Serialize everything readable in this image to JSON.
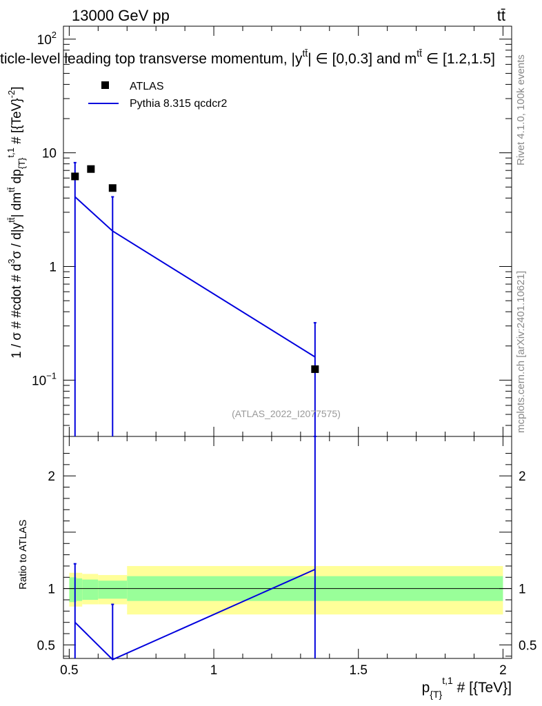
{
  "header": {
    "left": "13000 GeV pp",
    "right": "tt̄",
    "title": "ticle-level leading top transverse momentum, |y",
    "title_sup": "tt̄",
    "title_mid": "| ∈ [0,0.3] and m",
    "title_sup2": "tt̄",
    "title_end": " ∈ [1.2,1.5]"
  },
  "side_labels": {
    "rivet": "Rivet 4.1.0,  100k events",
    "mcplots": "mcplots.cern.ch [arXiv:2401.10621]"
  },
  "watermark": "(ATLAS_2022_I2077575)",
  "legend": {
    "data_label": "ATLAS",
    "mc_label": "Pythia 8.315 qcdcr2"
  },
  "axes": {
    "top_ylabel": "1 / σ # #cdot # d³σ / d|y^{tt̄}| dm^{tt̄} dp_{T}^{t,1} # [{TeV}⁻²]",
    "top_ylabel_parts": [
      "1 / σ # #cdot # d",
      "3",
      "σ / d|y",
      "tt̄",
      "| dm",
      "tt̄",
      " dp",
      "{T}",
      "t,1",
      " # [{TeV}",
      "-2",
      "]"
    ],
    "bottom_ylabel": "Ratio to ATLAS",
    "xlabel_main": "p",
    "xlabel_sub": "{T}",
    "xlabel_sup": "t,1",
    "xlabel_end": " # [{TeV}]",
    "x_ticks": [
      "0.5",
      "1",
      "1.5",
      "2"
    ],
    "top_y_ticks": [
      "10",
      "2",
      "10",
      "1",
      "10",
      "-1"
    ],
    "top_y_tick_labels": [
      {
        "base": "10",
        "exp": "2"
      },
      {
        "base": "10",
        "exp": ""
      },
      {
        "base": "1",
        "exp": ""
      },
      {
        "base": "10",
        "exp": "−1"
      }
    ],
    "ratio_y_ticks": [
      "2",
      "1",
      "0.5"
    ]
  },
  "colors": {
    "data": "#000000",
    "mc": "#0000dd",
    "band_inner": "#99ff99",
    "band_outer": "#ffff99"
  },
  "chart_data": {
    "type": "scatter",
    "x_range": [
      0.48,
      2.03
    ],
    "y_range_log": [
      0.032,
      130
    ],
    "y_scale": "log",
    "ratio_range": [
      0.38,
      2.35
    ],
    "series": [
      {
        "name": "ATLAS",
        "x": [
          0.52,
          0.575,
          0.65,
          1.35
        ],
        "y": [
          6.2,
          7.2,
          4.9,
          0.125
        ]
      },
      {
        "name": "Pythia 8.315 qcdcr2",
        "x": [
          0.52,
          0.65,
          1.35
        ],
        "y": [
          4.1,
          2.05,
          0.16
        ],
        "err_up": [
          8.2,
          4.1,
          0.32
        ],
        "err_down": [
          0.0,
          0.0,
          0.0
        ]
      }
    ],
    "ratio": {
      "x": [
        0.52,
        0.65,
        1.35
      ],
      "y": [
        0.7,
        0.37,
        1.17
      ],
      "err_up": [
        1.22,
        0.86,
        2.35
      ],
      "err_down": [
        0.38,
        0.38,
        0.38
      ],
      "bands": [
        {
          "x0": 0.5,
          "x1": 0.525,
          "inner": [
            0.88,
            1.1
          ],
          "outer": [
            0.84,
            1.14
          ]
        },
        {
          "x0": 0.525,
          "x1": 0.545,
          "inner": [
            0.89,
            1.09
          ],
          "outer": [
            0.84,
            1.14
          ]
        },
        {
          "x0": 0.545,
          "x1": 0.6,
          "inner": [
            0.9,
            1.08
          ],
          "outer": [
            0.86,
            1.13
          ]
        },
        {
          "x0": 0.6,
          "x1": 0.7,
          "inner": [
            0.91,
            1.07
          ],
          "outer": [
            0.86,
            1.12
          ]
        },
        {
          "x0": 0.7,
          "x1": 2.0,
          "inner": [
            0.89,
            1.11
          ],
          "outer": [
            0.77,
            1.2
          ]
        }
      ]
    }
  }
}
